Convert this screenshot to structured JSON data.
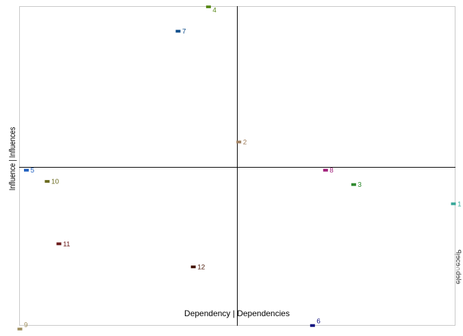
{
  "chart_data": {
    "type": "scatter",
    "title": "",
    "xlabel": "Dependency | Dependencies",
    "ylabel": "Influence | Influences",
    "side_note": "ꟼᴉɘcɘ∩dɘlɘ",
    "grid": false,
    "xlim": [
      0,
      1
    ],
    "ylim": [
      0,
      1
    ],
    "cross_x": 0.5,
    "cross_y": 0.5,
    "points": [
      {
        "label": "1",
        "x": 1.0,
        "y": 0.385,
        "color": "#3aa89a"
      },
      {
        "label": "2",
        "x": 0.505,
        "y": 0.578,
        "color": "#a08060"
      },
      {
        "label": "3",
        "x": 0.77,
        "y": 0.445,
        "color": "#2f8a2f"
      },
      {
        "label": "4",
        "x": 0.435,
        "y": 1.0,
        "color": "#5a8a1a"
      },
      {
        "label": "5",
        "x": 0.015,
        "y": 0.49,
        "color": "#2060c0"
      },
      {
        "label": "6",
        "x": 0.675,
        "y": 0.005,
        "color": "#101080"
      },
      {
        "label": "7",
        "x": 0.365,
        "y": 0.924,
        "color": "#104e8b"
      },
      {
        "label": "8",
        "x": 0.705,
        "y": 0.49,
        "color": "#a0207a"
      },
      {
        "label": "9",
        "x": 0.0,
        "y": -0.006,
        "color": "#a09060"
      },
      {
        "label": "10",
        "x": 0.063,
        "y": 0.455,
        "color": "#6b6b20"
      },
      {
        "label": "11",
        "x": 0.09,
        "y": 0.26,
        "color": "#6b1a1a"
      },
      {
        "label": "12",
        "x": 0.4,
        "y": 0.188,
        "color": "#4a1a0a"
      }
    ]
  }
}
